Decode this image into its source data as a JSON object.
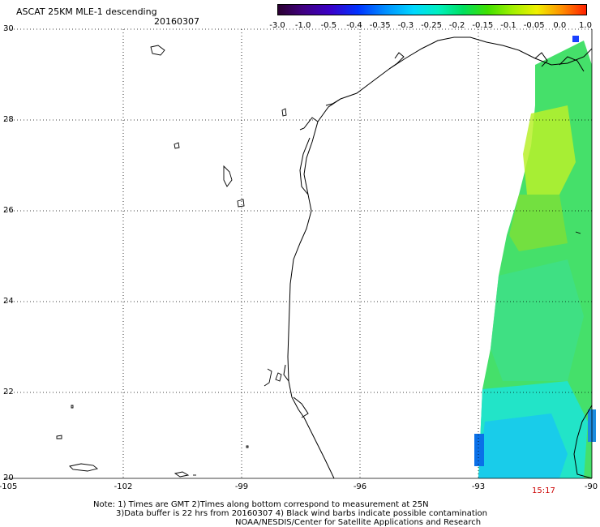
{
  "header": {
    "title": "ASCAT 25KM MLE-1 descending",
    "date": "20160307"
  },
  "colorbar": {
    "labels": [
      "-3.0",
      "-1.0",
      "-0.5",
      "-0.4",
      "-0.35",
      "-0.3",
      "-0.25",
      "-0.2",
      "-0.15",
      "-0.1",
      "-0.05",
      "0.0",
      "1.0"
    ]
  },
  "map": {
    "lat_labels": [
      "30",
      "28",
      "26",
      "24",
      "22",
      "20"
    ],
    "lon_labels": [
      "-105",
      "-102",
      "-99",
      "-96",
      "-93",
      "-90"
    ],
    "time_label": "15:17"
  },
  "footer": {
    "line1": "Note: 1) Times are GMT 2)Times along bottom correspond to measurement at 25N",
    "line2": "3)Data buffer is 22 hrs from 20160307 4) Black wind barbs indicate possible contamination",
    "line3": "NOAA/NESDIS/Center for Satellite Applications and Research"
  },
  "colors": {
    "coastline": "#000000",
    "grid": "#000000",
    "time_label": "#cc0000"
  }
}
